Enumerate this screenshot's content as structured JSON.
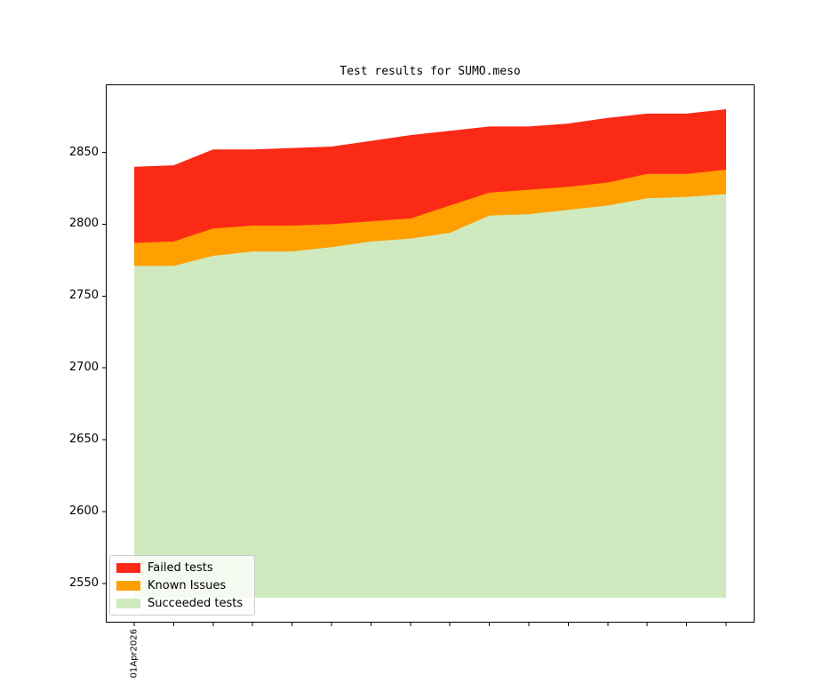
{
  "chart_data": {
    "type": "area",
    "variant": "stacked",
    "title": "Test results for SUMO.meso",
    "x_first_tick_label": "01Apr2026",
    "x_tick_count": 16,
    "ylim": [
      2523,
      2897
    ],
    "yticks": [
      2550,
      2600,
      2650,
      2700,
      2750,
      2800,
      2850
    ],
    "baseline": 2540,
    "grid": false,
    "legend_position": "lower left",
    "series": [
      {
        "name": "Failed tests",
        "color": "#fb2a16",
        "values": [
          53,
          53,
          55,
          53,
          54,
          54,
          56,
          58,
          52,
          46,
          44,
          44,
          45,
          42,
          42,
          42
        ]
      },
      {
        "name": "Known Issues",
        "color": "#ff9f00",
        "values": [
          16,
          17,
          19,
          18,
          18,
          16,
          14,
          14,
          19,
          16,
          17,
          16,
          16,
          17,
          16,
          17
        ]
      },
      {
        "name": "Succeeded tests",
        "color": "#cfeabe",
        "values": [
          2771,
          2771,
          2778,
          2781,
          2781,
          2784,
          2788,
          2790,
          2794,
          2806,
          2807,
          2810,
          2813,
          2818,
          2819,
          2821
        ]
      }
    ],
    "cumulative_tops": {
      "failed": [
        2840,
        2841,
        2852,
        2852,
        2853,
        2854,
        2858,
        2862,
        2865,
        2868,
        2868,
        2870,
        2874,
        2877,
        2877,
        2880
      ],
      "known": [
        2787,
        2788,
        2797,
        2799,
        2799,
        2800,
        2802,
        2804,
        2813,
        2822,
        2824,
        2826,
        2829,
        2835,
        2835,
        2838
      ],
      "succeeded": [
        2771,
        2771,
        2778,
        2781,
        2781,
        2784,
        2788,
        2790,
        2794,
        2806,
        2807,
        2810,
        2813,
        2818,
        2819,
        2821
      ]
    }
  },
  "legend": {
    "items": [
      {
        "label": "Failed tests",
        "color": "#fb2a16"
      },
      {
        "label": "Known Issues",
        "color": "#ff9f00"
      },
      {
        "label": "Succeeded tests",
        "color": "#cfeabe"
      }
    ]
  }
}
